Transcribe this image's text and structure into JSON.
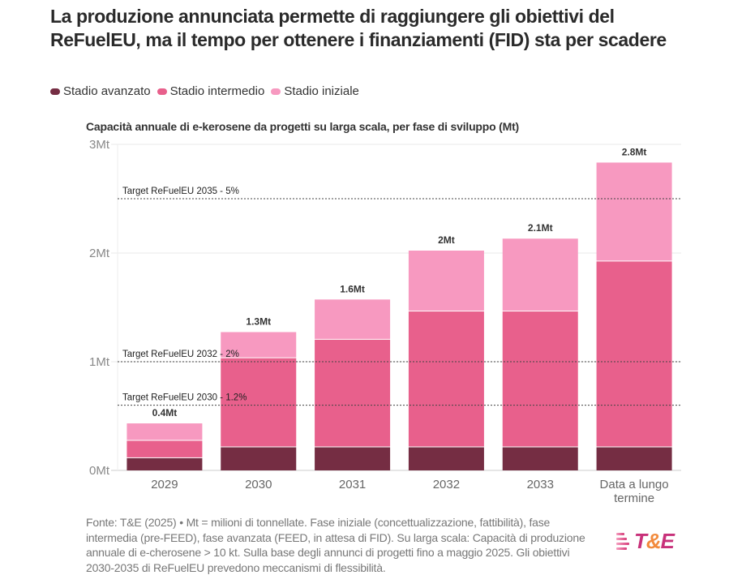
{
  "title": "La produzione annunciata permette di raggiungere gli obiettivi del ReFuelEU, ma il tempo per ottenere i finanziamenti (FID) sta per scadere",
  "legend": [
    {
      "label": "Stadio avanzato",
      "color": "#752d43"
    },
    {
      "label": "Stadio intermedio",
      "color": "#e8608c"
    },
    {
      "label": "Stadio iniziale",
      "color": "#f799c0"
    }
  ],
  "footer": "Fonte: T&E (2025) • Mt = milioni di tonnellate. Fase iniziale (concettualizzazione, fattibilità), fase intermedia (pre-FEED), fase avanzata (FEED, in attesa di FID). Su larga scala: Capacità di produzione annuale di e-cherosene > 10 kt. Sulla base degli annunci di progetti fino a maggio 2025. Gli obiettivi 2030-2035 di ReFuelEU prevedono meccanismi di flessibilità.",
  "logo": {
    "t": "T",
    "amp": "&",
    "e": "E"
  },
  "chart_data": {
    "type": "bar",
    "stacked": true,
    "title": "Capacità annuale di e-kerosene da progetti su larga scala, per fase di sviluppo (Mt)",
    "xlabel": "",
    "ylabel": "",
    "ylim": [
      0,
      3
    ],
    "yticks": [
      0,
      1,
      2,
      3
    ],
    "ytick_labels": [
      "0Mt",
      "1Mt",
      "2Mt",
      "3Mt"
    ],
    "grid": true,
    "legend_position": "top-left",
    "categories": [
      "2029",
      "2030",
      "2031",
      "2032",
      "2033",
      "Data a lungo termine"
    ],
    "series": [
      {
        "name": "Stadio avanzato",
        "color": "#752d43",
        "values": [
          0.12,
          0.22,
          0.22,
          0.22,
          0.22,
          0.22
        ]
      },
      {
        "name": "Stadio intermedio",
        "color": "#e8608c",
        "values": [
          0.16,
          0.82,
          0.99,
          1.25,
          1.25,
          1.71
        ]
      },
      {
        "name": "Stadio iniziale",
        "color": "#f799c0",
        "values": [
          0.16,
          0.24,
          0.37,
          0.56,
          0.67,
          0.91
        ]
      }
    ],
    "totals": [
      0.44,
      1.28,
      1.58,
      2.03,
      2.14,
      2.84
    ],
    "total_labels": [
      "0.4Mt",
      "1.3Mt",
      "1.6Mt",
      "2Mt",
      "2.1Mt",
      "2.8Mt"
    ],
    "reference_lines": [
      {
        "label": "Target ReFuelEU 2035 - 5%",
        "value": 2.5
      },
      {
        "label": "Target ReFuelEU 2032 - 2%",
        "value": 1.0
      },
      {
        "label": "Target ReFuelEU 2030 - 1.2%",
        "value": 0.6
      }
    ]
  }
}
